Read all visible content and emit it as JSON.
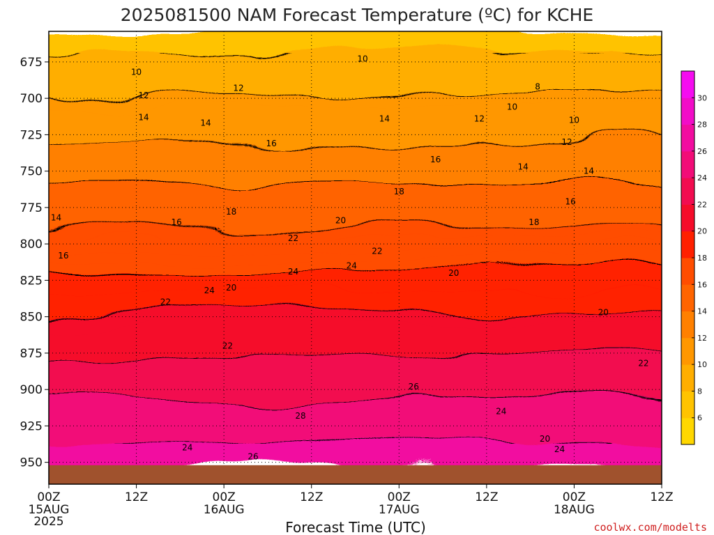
{
  "chart_data": {
    "type": "heatmap",
    "title": "2025081500 NAM Forecast Temperature (ºC) for KCHE",
    "xlabel": "Forecast Time (UTC)",
    "ylabel": "",
    "credit": "coolwx.com/modelts",
    "x_ticks": [
      {
        "hour": 0,
        "label": "00Z",
        "sub": "15AUG",
        "sub2": "2025"
      },
      {
        "hour": 12,
        "label": "12Z",
        "sub": "",
        "sub2": ""
      },
      {
        "hour": 24,
        "label": "00Z",
        "sub": "16AUG",
        "sub2": ""
      },
      {
        "hour": 36,
        "label": "12Z",
        "sub": "",
        "sub2": ""
      },
      {
        "hour": 48,
        "label": "00Z",
        "sub": "17AUG",
        "sub2": ""
      },
      {
        "hour": 60,
        "label": "12Z",
        "sub": "",
        "sub2": ""
      },
      {
        "hour": 72,
        "label": "00Z",
        "sub": "18AUG",
        "sub2": ""
      },
      {
        "hour": 84,
        "label": "12Z",
        "sub": "",
        "sub2": ""
      }
    ],
    "y_ticks": [
      675,
      700,
      725,
      750,
      775,
      800,
      825,
      850,
      875,
      900,
      925,
      950
    ],
    "xlim": [
      0,
      84
    ],
    "ylim": [
      654,
      965
    ],
    "surface_pressure_hpa": 952,
    "colorbar": {
      "ticks": [
        6,
        8,
        10,
        12,
        14,
        16,
        18,
        20,
        22,
        24,
        26,
        28,
        30
      ],
      "colors": [
        "#ffd700",
        "#ffc300",
        "#ffae00",
        "#ff9700",
        "#ff8000",
        "#ff6400",
        "#ff4d00",
        "#ff2000",
        "#f50c2a",
        "#f20c50",
        "#f20c78",
        "#f20ca0",
        "#f20cc8",
        "#f50cf0"
      ]
    },
    "isotherm_labels": [
      {
        "h": 12.0,
        "p": 682,
        "t": "10"
      },
      {
        "h": 43.0,
        "p": 673,
        "t": "10"
      },
      {
        "h": 67.0,
        "p": 692,
        "t": "8"
      },
      {
        "h": 13.0,
        "p": 698,
        "t": "12"
      },
      {
        "h": 26.0,
        "p": 693,
        "t": "12"
      },
      {
        "h": 59.0,
        "p": 714,
        "t": "12"
      },
      {
        "h": 63.5,
        "p": 706,
        "t": "10"
      },
      {
        "h": 72.0,
        "p": 715,
        "t": "10"
      },
      {
        "h": 71.0,
        "p": 730,
        "t": "12"
      },
      {
        "h": 13.0,
        "p": 713,
        "t": "14"
      },
      {
        "h": 21.5,
        "p": 717,
        "t": "14"
      },
      {
        "h": 46.0,
        "p": 714,
        "t": "14"
      },
      {
        "h": 30.5,
        "p": 731,
        "t": "16"
      },
      {
        "h": 53.0,
        "p": 742,
        "t": "16"
      },
      {
        "h": 65.0,
        "p": 747,
        "t": "14"
      },
      {
        "h": 74.0,
        "p": 750,
        "t": "14"
      },
      {
        "h": 48.0,
        "p": 764,
        "t": "18"
      },
      {
        "h": 71.5,
        "p": 771,
        "t": "16"
      },
      {
        "h": 1.0,
        "p": 782,
        "t": "14"
      },
      {
        "h": 17.5,
        "p": 785,
        "t": "16"
      },
      {
        "h": 25.0,
        "p": 778,
        "t": "18"
      },
      {
        "h": 40.0,
        "p": 784,
        "t": "20"
      },
      {
        "h": 66.5,
        "p": 785,
        "t": "18"
      },
      {
        "h": 33.5,
        "p": 796,
        "t": "22"
      },
      {
        "h": 45.0,
        "p": 805,
        "t": "22"
      },
      {
        "h": 2.0,
        "p": 808,
        "t": "16"
      },
      {
        "h": 33.5,
        "p": 819,
        "t": "24"
      },
      {
        "h": 41.5,
        "p": 815,
        "t": "24"
      },
      {
        "h": 55.5,
        "p": 820,
        "t": "20"
      },
      {
        "h": 22.0,
        "p": 832,
        "t": "24"
      },
      {
        "h": 25.0,
        "p": 830,
        "t": "20"
      },
      {
        "h": 16.0,
        "p": 840,
        "t": "22"
      },
      {
        "h": 76.0,
        "p": 847,
        "t": "20"
      },
      {
        "h": 24.5,
        "p": 870,
        "t": "22"
      },
      {
        "h": 81.5,
        "p": 882,
        "t": "22"
      },
      {
        "h": 50.0,
        "p": 898,
        "t": "26"
      },
      {
        "h": 34.5,
        "p": 918,
        "t": "28"
      },
      {
        "h": 62.0,
        "p": 915,
        "t": "24"
      },
      {
        "h": 68.0,
        "p": 934,
        "t": "20"
      },
      {
        "h": 19.0,
        "p": 940,
        "t": "24"
      },
      {
        "h": 28.0,
        "p": 946,
        "t": "26"
      },
      {
        "h": 70.0,
        "p": 941,
        "t": "24"
      }
    ]
  }
}
